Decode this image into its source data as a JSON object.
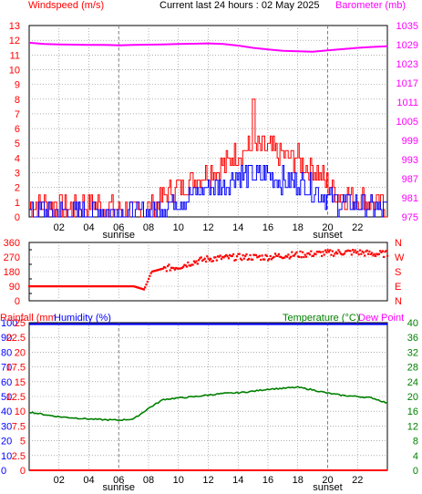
{
  "header": {
    "windspeed_label": "Windspeed (m/s)",
    "title": "Current last 24 hours : 02 May 2025",
    "barometer_label": "Barometer (mb)"
  },
  "colors": {
    "wind": "#ff0000",
    "gust": "#0000ff",
    "barometer": "#ff00ff",
    "direction": "#ff0000",
    "rain": "#ff0000",
    "humidity": "#0000ff",
    "temperature": "#008000",
    "dewpoint": "#ff00ff",
    "grid": "#808080",
    "day_marker": "#808080"
  },
  "chart_data": [
    {
      "type": "line",
      "title": "Windspeed / Barometer",
      "x_ticks": [
        "02",
        "04",
        "06",
        "08",
        "10",
        "12",
        "14",
        "16",
        "18",
        "20",
        "22"
      ],
      "day_markers": [
        "sunrise",
        "sunset"
      ],
      "y_left_ticks": [
        0,
        1,
        2,
        3,
        4,
        5,
        6,
        7,
        8,
        9,
        10,
        11,
        12,
        13
      ],
      "y_left_lim": [
        0,
        13
      ],
      "y_right_ticks": [
        975,
        981,
        987,
        993,
        999,
        1005,
        1011,
        1017,
        1023,
        1029,
        1035
      ],
      "y_right_lim": [
        975,
        1035
      ],
      "x_hours": [
        0,
        1,
        2,
        3,
        4,
        5,
        6,
        7,
        8,
        9,
        10,
        11,
        12,
        13,
        14,
        15,
        16,
        17,
        18,
        19,
        20,
        21,
        22,
        23,
        24
      ],
      "series": [
        {
          "name": "Windspeed (m/s)",
          "axis": "left",
          "values": [
            0.6,
            0.8,
            0.7,
            0.5,
            0.9,
            0.6,
            0.4,
            0.2,
            0.5,
            1.3,
            1.9,
            2.5,
            3.0,
            3.3,
            4.5,
            4.4,
            4.6,
            4.0,
            3.9,
            3.2,
            2.1,
            1.4,
            1.2,
            0.9,
            0.6
          ]
        },
        {
          "name": "Gust",
          "axis": "left",
          "values": [
            0.3,
            0.4,
            0.3,
            0.2,
            0.4,
            0.3,
            0.2,
            0.1,
            0.2,
            0.7,
            1.1,
            1.5,
            1.9,
            2.1,
            2.8,
            2.7,
            2.9,
            2.4,
            2.3,
            1.8,
            1.2,
            0.8,
            0.7,
            0.5,
            0.3
          ]
        },
        {
          "name": "Barometer (mb)",
          "axis": "right",
          "values": [
            1029.6,
            1029.2,
            1029.1,
            1029.0,
            1028.9,
            1028.9,
            1028.8,
            1028.9,
            1029.0,
            1029.1,
            1029.2,
            1029.3,
            1029.4,
            1029.2,
            1028.7,
            1028.0,
            1027.5,
            1027.1,
            1026.9,
            1026.8,
            1027.2,
            1027.6,
            1028.0,
            1028.3,
            1028.5
          ]
        }
      ]
    },
    {
      "type": "scatter",
      "title": "Wind direction",
      "x_ticks": [
        "02",
        "04",
        "06",
        "08",
        "10",
        "12",
        "14",
        "16",
        "18",
        "20",
        "22"
      ],
      "y_left_ticks": [
        0,
        90,
        180,
        270,
        360
      ],
      "y_left_lim": [
        0,
        360
      ],
      "y_right_ticks": [
        "N",
        "E",
        "S",
        "W",
        "N"
      ],
      "x_hours": [
        0,
        1,
        2,
        3,
        4,
        5,
        6,
        7,
        7.7,
        8.2,
        9,
        10,
        11,
        12,
        13,
        14,
        15,
        16,
        17,
        18,
        19,
        20,
        21,
        22,
        23,
        24
      ],
      "values": [
        90,
        90,
        90,
        90,
        90,
        90,
        90,
        90,
        70,
        180,
        200,
        210,
        240,
        260,
        265,
        270,
        270,
        270,
        280,
        285,
        290,
        295,
        300,
        300,
        290,
        290
      ]
    },
    {
      "type": "line",
      "title": "Rainfall / Humidity / Temperature / Dew Point",
      "x_ticks": [
        "02",
        "04",
        "06",
        "08",
        "10",
        "12",
        "14",
        "16",
        "18",
        "20",
        "22"
      ],
      "day_markers": [
        "sunrise",
        "sunset"
      ],
      "labels": {
        "rainfall": "Rainfall (mm",
        "humidity": "Humidity (%)",
        "temperature": "Temperature (°C)",
        "dewpoint": "Dew Point"
      },
      "y_left_ticks_humidity": [
        0,
        10,
        20,
        30,
        40,
        50,
        60,
        70,
        80,
        90,
        100
      ],
      "y_left_ticks_rain": [
        0,
        2.5,
        5,
        7.5,
        10,
        12.5,
        15,
        17.5,
        20,
        22.5,
        25
      ],
      "y_left_lim": [
        0,
        100
      ],
      "y_right_ticks": [
        0,
        4,
        8,
        12,
        16,
        20,
        24,
        28,
        32,
        36,
        40
      ],
      "y_right_lim": [
        0,
        40
      ],
      "x_hours": [
        0,
        1,
        2,
        3,
        4,
        5,
        6,
        7,
        8,
        9,
        10,
        11,
        12,
        13,
        14,
        15,
        16,
        17,
        18,
        19,
        20,
        21,
        22,
        23,
        24
      ],
      "series": [
        {
          "name": "Rainfall",
          "axis": "rain",
          "values": [
            0,
            0,
            0,
            0,
            0,
            0,
            0,
            0,
            0,
            0,
            0,
            0,
            0,
            0,
            0,
            0,
            0,
            0,
            0,
            0,
            0,
            0,
            0,
            0,
            0
          ]
        },
        {
          "name": "Humidity",
          "axis": "humidity",
          "values": [
            99,
            99,
            99,
            99,
            99,
            99,
            99,
            99,
            99,
            99,
            99,
            99,
            99,
            99,
            99,
            99,
            99,
            99,
            99,
            99,
            99,
            99,
            99,
            99,
            99
          ]
        },
        {
          "name": "Temperature",
          "axis": "right",
          "values": [
            15.8,
            15.1,
            14.5,
            14.2,
            13.9,
            13.7,
            13.6,
            13.9,
            16.8,
            19.2,
            19.6,
            19.9,
            20.4,
            20.8,
            21.0,
            21.4,
            22.0,
            22.2,
            22.5,
            21.8,
            20.9,
            20.3,
            20.0,
            19.6,
            18.2
          ]
        }
      ]
    }
  ]
}
